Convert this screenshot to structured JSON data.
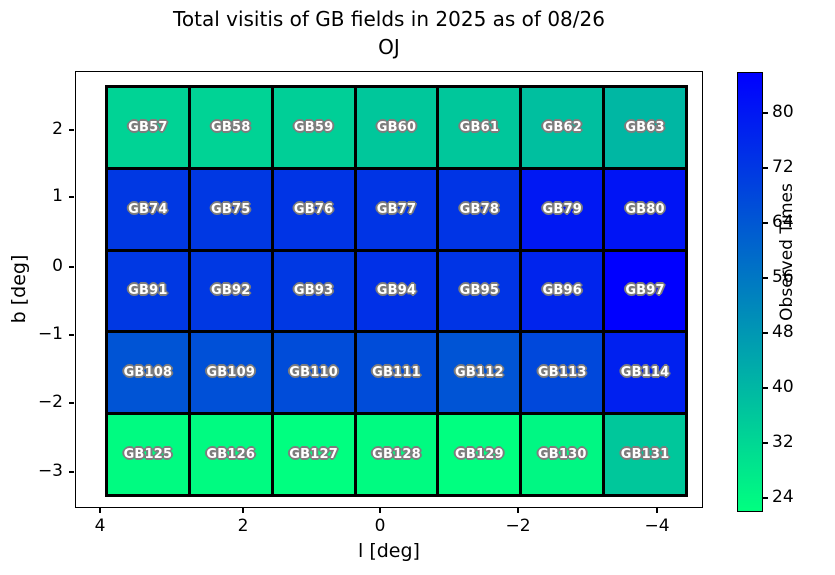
{
  "title": "Total visitis of GB fields in 2025 as of 08/26",
  "subtitle": "OJ",
  "chart_data": {
    "type": "heatmap",
    "title": "Total visitis of GB fields in 2025 as of 08/26",
    "subtitle": "OJ",
    "xlabel": "l [deg]",
    "ylabel": "b [deg]",
    "colorbar_label": "Observed Times",
    "colormap": "winter_r (green = low, blue = high)",
    "vmin": 22,
    "vmax": 86,
    "colorbar_ticks": [
      24,
      32,
      40,
      48,
      56,
      64,
      72,
      80
    ],
    "x_tick_labels": [
      "4",
      "2",
      "0",
      "−2",
      "−4"
    ],
    "y_tick_labels": [
      "2",
      "1",
      "0",
      "−1",
      "−2",
      "−3"
    ],
    "rows": [
      {
        "cells": [
          {
            "label": "GB57",
            "value": 33
          },
          {
            "label": "GB58",
            "value": 33
          },
          {
            "label": "GB59",
            "value": 34
          },
          {
            "label": "GB60",
            "value": 36
          },
          {
            "label": "GB61",
            "value": 36
          },
          {
            "label": "GB62",
            "value": 38
          },
          {
            "label": "GB63",
            "value": 40
          }
        ]
      },
      {
        "cells": [
          {
            "label": "GB74",
            "value": 72
          },
          {
            "label": "GB75",
            "value": 72
          },
          {
            "label": "GB76",
            "value": 73
          },
          {
            "label": "GB77",
            "value": 73
          },
          {
            "label": "GB78",
            "value": 73
          },
          {
            "label": "GB79",
            "value": 80
          },
          {
            "label": "GB80",
            "value": 81
          }
        ]
      },
      {
        "cells": [
          {
            "label": "GB91",
            "value": 72
          },
          {
            "label": "GB92",
            "value": 72
          },
          {
            "label": "GB93",
            "value": 72
          },
          {
            "label": "GB94",
            "value": 74
          },
          {
            "label": "GB95",
            "value": 73
          },
          {
            "label": "GB96",
            "value": 77
          },
          {
            "label": "GB97",
            "value": 86
          }
        ]
      },
      {
        "cells": [
          {
            "label": "GB108",
            "value": 65
          },
          {
            "label": "GB109",
            "value": 66
          },
          {
            "label": "GB110",
            "value": 67
          },
          {
            "label": "GB111",
            "value": 67
          },
          {
            "label": "GB112",
            "value": 65
          },
          {
            "label": "GB113",
            "value": 68
          },
          {
            "label": "GB114",
            "value": 78
          }
        ]
      },
      {
        "cells": [
          {
            "label": "GB125",
            "value": 23
          },
          {
            "label": "GB126",
            "value": 23
          },
          {
            "label": "GB127",
            "value": 22
          },
          {
            "label": "GB128",
            "value": 23
          },
          {
            "label": "GB129",
            "value": 22
          },
          {
            "label": "GB130",
            "value": 24
          },
          {
            "label": "GB131",
            "value": 36
          }
        ]
      }
    ],
    "colors": {
      "low": "#00ff80",
      "high": "#0000ff",
      "cell_border": "#000000",
      "cell_text": "#ffffff",
      "cell_text_outline": "#7d7d7d"
    }
  }
}
